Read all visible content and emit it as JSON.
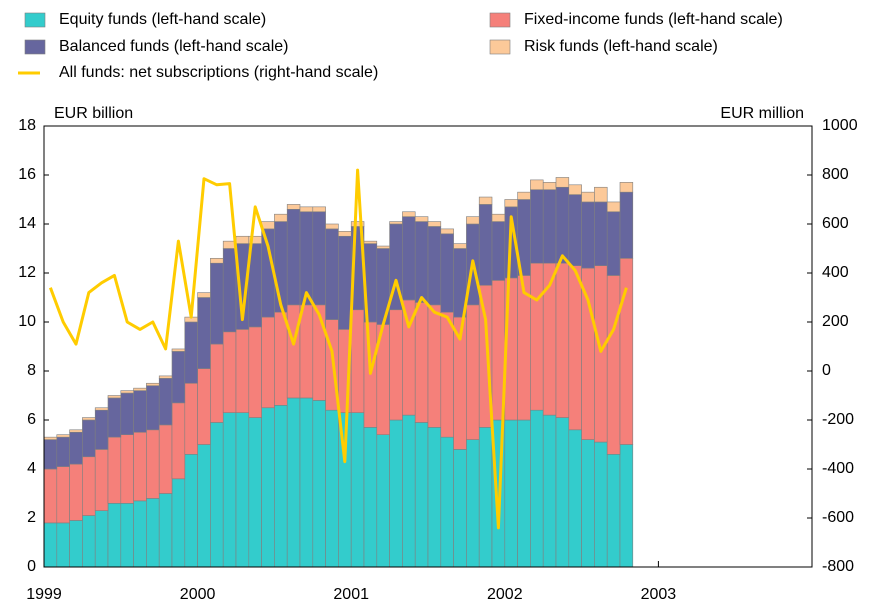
{
  "chart_data": {
    "type": "bar",
    "stacked": true,
    "y_label": "EUR billion",
    "y2_label": "EUR million",
    "categories": [
      null,
      null,
      null,
      null,
      null,
      null,
      null,
      null,
      null,
      null,
      null,
      null,
      null,
      null,
      null,
      null,
      null,
      null,
      null,
      null,
      null,
      null,
      null,
      null,
      null,
      null,
      null,
      null,
      null,
      null,
      null,
      null,
      null,
      null,
      null,
      null,
      null,
      null,
      null,
      null,
      null,
      null,
      null,
      null,
      null,
      null
    ],
    "xlim": [
      1999,
      2004
    ],
    "xticks": [
      1999,
      2000,
      2001,
      2002,
      2003
    ],
    "ylim": [
      0,
      18
    ],
    "yticks": [
      0,
      2,
      4,
      6,
      8,
      10,
      12,
      14,
      16,
      18
    ],
    "y2lim": [
      -800,
      1000
    ],
    "y2ticks": [
      -800,
      -600,
      -400,
      -200,
      0,
      200,
      400,
      600,
      800,
      1000
    ],
    "series": [
      {
        "name": "Equity funds (left-hand scale)",
        "color": "#33cccc",
        "values": [
          1.8,
          1.8,
          1.9,
          2.1,
          2.3,
          2.6,
          2.6,
          2.7,
          2.8,
          3.0,
          3.6,
          4.6,
          5.0,
          5.9,
          6.3,
          6.3,
          6.1,
          6.5,
          6.6,
          6.9,
          6.9,
          6.8,
          6.4,
          6.3,
          6.3,
          5.7,
          5.4,
          6.0,
          6.2,
          5.9,
          5.7,
          5.3,
          4.8,
          5.2,
          5.7,
          6.0,
          6.0,
          6.0,
          6.4,
          6.2,
          6.1,
          5.6,
          5.2,
          5.1,
          4.6,
          5.0
        ]
      },
      {
        "name": "Fixed-income funds (left-hand scale)",
        "color": "#f5807a",
        "values": [
          2.2,
          2.3,
          2.3,
          2.4,
          2.5,
          2.7,
          2.8,
          2.8,
          2.8,
          2.8,
          3.1,
          2.9,
          3.1,
          3.2,
          3.3,
          3.4,
          3.7,
          3.7,
          3.8,
          3.8,
          3.8,
          3.9,
          3.7,
          3.4,
          4.2,
          4.3,
          4.5,
          4.5,
          4.7,
          4.9,
          5.0,
          5.1,
          5.4,
          5.5,
          5.8,
          5.7,
          5.8,
          5.9,
          6.0,
          6.2,
          6.3,
          6.7,
          7.0,
          7.2,
          7.3,
          7.6
        ]
      },
      {
        "name": "Balanced funds (left-hand scale)",
        "color": "#66669e",
        "values": [
          1.2,
          1.2,
          1.3,
          1.5,
          1.6,
          1.6,
          1.7,
          1.7,
          1.8,
          1.9,
          2.1,
          2.5,
          2.9,
          3.3,
          3.4,
          3.5,
          3.4,
          3.6,
          3.7,
          3.9,
          3.8,
          3.8,
          3.7,
          3.8,
          3.4,
          3.2,
          3.1,
          3.5,
          3.4,
          3.3,
          3.2,
          3.2,
          2.8,
          3.3,
          3.3,
          2.4,
          2.9,
          3.1,
          3.0,
          3.0,
          3.1,
          2.9,
          2.7,
          2.6,
          2.6,
          2.7
        ]
      },
      {
        "name": "Risk funds (left-hand scale)",
        "color": "#fcc999",
        "values": [
          0.1,
          0.1,
          0.1,
          0.1,
          0.1,
          0.1,
          0.1,
          0.1,
          0.1,
          0.1,
          0.1,
          0.2,
          0.2,
          0.2,
          0.3,
          0.3,
          0.3,
          0.3,
          0.3,
          0.2,
          0.2,
          0.2,
          0.2,
          0.2,
          0.2,
          0.1,
          0.1,
          0.1,
          0.2,
          0.2,
          0.2,
          0.2,
          0.2,
          0.3,
          0.3,
          0.3,
          0.3,
          0.3,
          0.4,
          0.3,
          0.4,
          0.4,
          0.4,
          0.6,
          0.4,
          0.4
        ]
      },
      {
        "name": "All funds: net subscriptions (right-hand scale)",
        "color": "#ffcc00",
        "type": "line",
        "axis": "y2",
        "values": [
          340,
          200,
          110,
          320,
          360,
          390,
          200,
          170,
          200,
          90,
          530,
          220,
          785,
          760,
          765,
          210,
          670,
          510,
          270,
          110,
          320,
          230,
          80,
          -370,
          820,
          -10,
          190,
          370,
          180,
          300,
          240,
          220,
          130,
          450,
          210,
          -640,
          630,
          320,
          290,
          350,
          470,
          410,
          290,
          80,
          170,
          340
        ]
      }
    ]
  }
}
